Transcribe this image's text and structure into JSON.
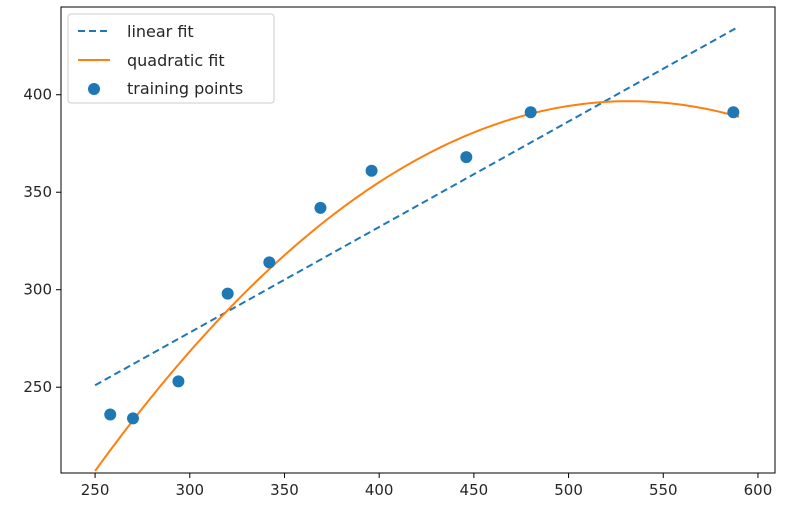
{
  "chart_data": {
    "type": "scatter",
    "title": "",
    "xlabel": "",
    "ylabel": "",
    "xlim": [
      232,
      609
    ],
    "ylim": [
      206,
      445
    ],
    "x_ticks": [
      250,
      300,
      350,
      400,
      450,
      500,
      550,
      600
    ],
    "y_ticks": [
      250,
      300,
      350,
      400
    ],
    "grid": false,
    "legend_position": "top-left",
    "series": [
      {
        "name": "linear fit",
        "kind": "line",
        "style": "dashed",
        "color": "#1f77b4",
        "x": [
          250,
          590
        ],
        "y": [
          251,
          435
        ]
      },
      {
        "name": "quadratic fit",
        "kind": "line",
        "style": "solid",
        "color": "#ff7f0e",
        "coefficients": {
          "a": -0.002385,
          "b": 2.5376,
          "c": -278.3
        },
        "x_range": [
          250,
          590
        ]
      },
      {
        "name": "training points",
        "kind": "scatter",
        "color": "#1f77b4",
        "x": [
          258,
          270,
          294,
          320,
          342,
          369,
          396,
          446,
          480,
          587
        ],
        "y": [
          236,
          234,
          253,
          298,
          314,
          342,
          361,
          368,
          391,
          391
        ]
      }
    ]
  }
}
